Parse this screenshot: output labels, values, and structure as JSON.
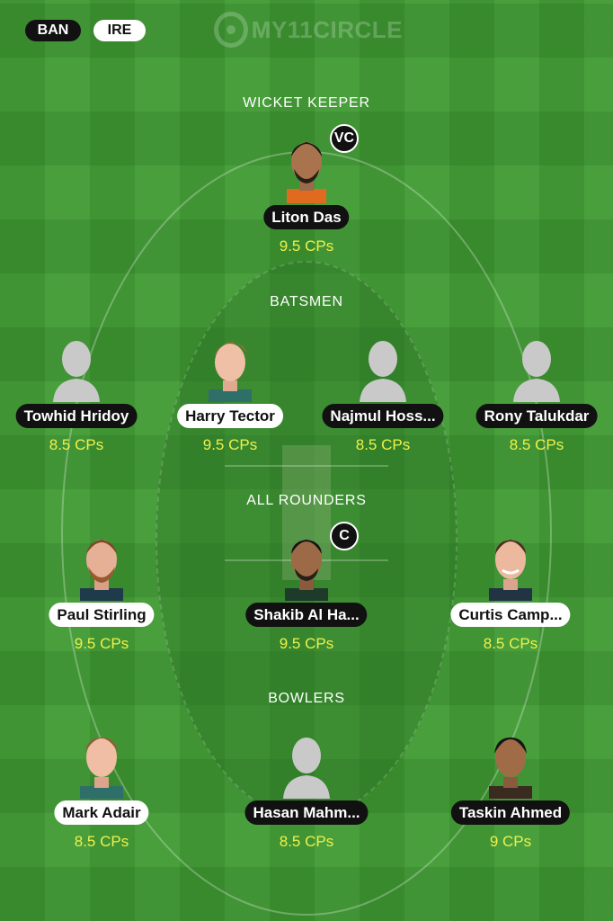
{
  "teams": {
    "left": "BAN",
    "right": "IRE"
  },
  "logo": {
    "text": "MY11CIRCLE"
  },
  "sections": {
    "wicket_keeper": "WICKET KEEPER",
    "batsmen": "BATSMEN",
    "all_rounders": "ALL ROUNDERS",
    "bowlers": "BOWLERS"
  },
  "players": {
    "liton": {
      "name": "Liton Das",
      "points": "9.5 CPs",
      "badge": "VC",
      "photo": "player-photo"
    },
    "towhid": {
      "name": "Towhid Hridoy",
      "points": "8.5 CPs",
      "photo": "placeholder-silhouette"
    },
    "harry": {
      "name": "Harry Tector",
      "points": "9.5 CPs",
      "photo": "player-photo"
    },
    "najmul": {
      "name": "Najmul Hoss...",
      "points": "8.5 CPs",
      "photo": "placeholder-silhouette"
    },
    "rony": {
      "name": "Rony Talukdar",
      "points": "8.5 CPs",
      "photo": "placeholder-silhouette"
    },
    "paul": {
      "name": "Paul Stirling",
      "points": "9.5 CPs",
      "photo": "player-photo"
    },
    "shakib": {
      "name": "Shakib Al Ha...",
      "points": "9.5 CPs",
      "badge": "C",
      "photo": "player-photo"
    },
    "curtis": {
      "name": "Curtis Camp...",
      "points": "8.5 CPs",
      "photo": "player-photo"
    },
    "mark": {
      "name": "Mark Adair",
      "points": "8.5 CPs",
      "photo": "player-photo"
    },
    "hasan": {
      "name": "Hasan Mahm...",
      "points": "8.5 CPs",
      "photo": "placeholder-silhouette"
    },
    "taskin": {
      "name": "Taskin Ahmed",
      "points": "9 CPs",
      "photo": "player-photo"
    }
  },
  "colors": {
    "field": "#3f9a32",
    "points_text": "#f0f04a",
    "pill_dark": "#111111",
    "pill_light": "#ffffff"
  }
}
